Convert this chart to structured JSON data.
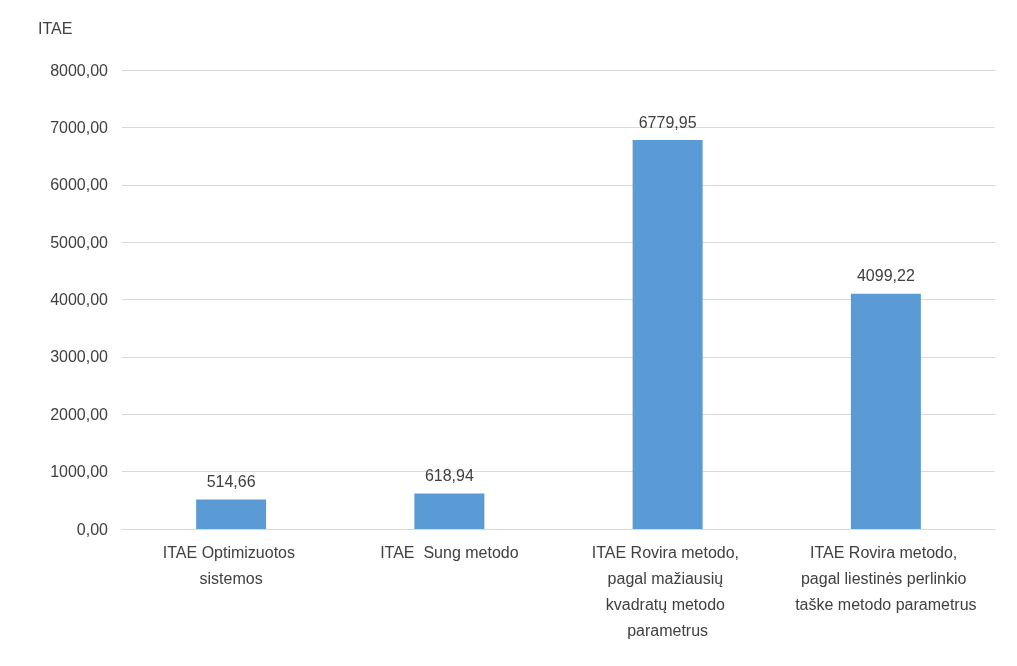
{
  "chart_data": {
    "type": "bar",
    "ylabel": "ITAE",
    "categories": [
      "ITAE Optimizuotos sistemos",
      "ITAE  Sung metodo",
      "ITAE Rovira metodo, pagal mažiausių kvadratų metodo parametrus",
      "ITAE Rovira metodo, pagal liestinės perlinkio taške metodo parametrus"
    ],
    "values": [
      514.66,
      618.94,
      6779.95,
      4099.22
    ],
    "value_labels": [
      "514,66",
      "618,94",
      "6779,95",
      "4099,22"
    ],
    "color": "#5b9bd5",
    "ylim": [
      0,
      8000
    ],
    "yticks": [
      {
        "value": 0,
        "label": "0,00"
      },
      {
        "value": 1000,
        "label": "1000,00"
      },
      {
        "value": 2000,
        "label": "2000,00"
      },
      {
        "value": 3000,
        "label": "3000,00"
      },
      {
        "value": 4000,
        "label": "4000,00"
      },
      {
        "value": 5000,
        "label": "5000,00"
      },
      {
        "value": 6000,
        "label": "6000,00"
      },
      {
        "value": 7000,
        "label": "7000,00"
      },
      {
        "value": 8000,
        "label": "8000,00"
      }
    ],
    "grid": "y"
  }
}
